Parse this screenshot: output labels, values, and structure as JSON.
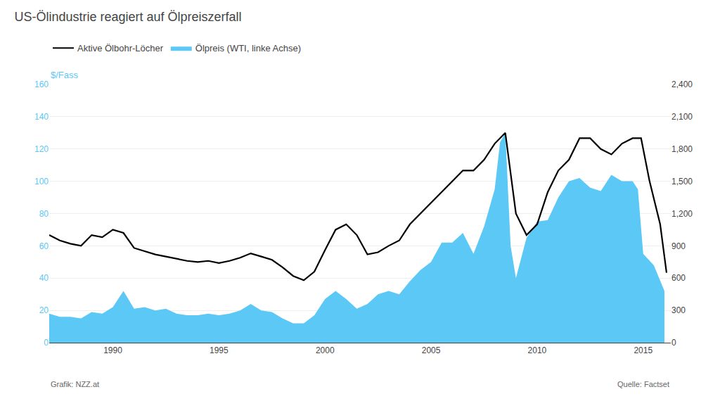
{
  "chart_data": {
    "type": "line",
    "title": "US-Ölindustrie reagiert auf Ölpreiszerfall",
    "ylabel": "$/Fass",
    "annotations": [
      "Grafik: NZZ.at",
      "Quelle: Factset"
    ],
    "xlim": [
      1987.0,
      2016.3
    ],
    "xticks": [
      1990,
      1995,
      2000,
      2005,
      2010,
      2015
    ],
    "ylim": [
      0,
      160
    ],
    "yticks": [
      0,
      20,
      40,
      60,
      80,
      100,
      120,
      140,
      160
    ],
    "y2lim": [
      0,
      2400
    ],
    "y2ticks": [
      0,
      300,
      600,
      900,
      {
        "value": 1200,
        "label": "1,200"
      },
      {
        "value": 1500,
        "label": "1,500"
      },
      {
        "value": 1800,
        "label": "1,800"
      },
      {
        "value": 2100,
        "label": "2,100"
      },
      {
        "value": 2400,
        "label": "2,400"
      }
    ],
    "grid": true,
    "legend": "top left",
    "series": [
      {
        "name": "Aktive Ölbohr-Löcher",
        "type": "line",
        "axis": "y2",
        "color": "#000000",
        "x": [
          1987.0,
          1987.5,
          1988.0,
          1988.5,
          1989.0,
          1989.5,
          1990.0,
          1990.5,
          1991.0,
          1991.5,
          1992.0,
          1992.5,
          1993.0,
          1993.5,
          1994.0,
          1994.5,
          1995.0,
          1995.5,
          1996.0,
          1996.5,
          1997.0,
          1997.5,
          1998.0,
          1998.5,
          1999.0,
          1999.5,
          2000.0,
          2000.5,
          2001.0,
          2001.5,
          2002.0,
          2002.5,
          2003.0,
          2003.5,
          2004.0,
          2004.5,
          2005.0,
          2005.5,
          2006.0,
          2006.5,
          2007.0,
          2007.5,
          2008.0,
          2008.5,
          2009.0,
          2009.5,
          2010.0,
          2010.5,
          2011.0,
          2011.5,
          2012.0,
          2012.5,
          2013.0,
          2013.5,
          2014.0,
          2014.5,
          2014.9,
          2015.3,
          2015.8,
          2016.1
        ],
        "values": [
          1000,
          950,
          920,
          900,
          1000,
          980,
          1050,
          1020,
          880,
          850,
          820,
          800,
          780,
          760,
          750,
          760,
          740,
          760,
          790,
          830,
          800,
          770,
          700,
          620,
          580,
          660,
          860,
          1050,
          1100,
          1000,
          820,
          840,
          900,
          950,
          1100,
          1200,
          1300,
          1400,
          1500,
          1600,
          1600,
          1700,
          1850,
          1950,
          1200,
          1000,
          1100,
          1400,
          1600,
          1700,
          1900,
          1900,
          1800,
          1750,
          1850,
          1900,
          1900,
          1500,
          1100,
          650
        ]
      },
      {
        "name": "Ölpreis (WTI, linke Achse)",
        "type": "area",
        "color": "#5bc8f5",
        "x": [
          1987.0,
          1987.5,
          1988.0,
          1988.5,
          1989.0,
          1989.5,
          1990.0,
          1990.5,
          1991.0,
          1991.5,
          1992.0,
          1992.5,
          1993.0,
          1993.5,
          1994.0,
          1994.5,
          1995.0,
          1995.5,
          1996.0,
          1996.5,
          1997.0,
          1997.5,
          1998.0,
          1998.5,
          1999.0,
          1999.5,
          2000.0,
          2000.5,
          2001.0,
          2001.5,
          2002.0,
          2002.5,
          2003.0,
          2003.5,
          2004.0,
          2004.5,
          2005.0,
          2005.5,
          2006.0,
          2006.5,
          2007.0,
          2007.5,
          2008.0,
          2008.25,
          2008.5,
          2008.75,
          2009.0,
          2009.5,
          2010.0,
          2010.5,
          2011.0,
          2011.5,
          2012.0,
          2012.5,
          2013.0,
          2013.5,
          2014.0,
          2014.5,
          2014.75,
          2015.0,
          2015.5,
          2016.0
        ],
        "values": [
          18,
          16,
          16,
          15,
          19,
          18,
          22,
          32,
          21,
          22,
          20,
          21,
          18,
          17,
          17,
          18,
          17,
          18,
          20,
          24,
          20,
          19,
          15,
          12,
          12,
          17,
          27,
          32,
          27,
          21,
          24,
          30,
          32,
          30,
          38,
          45,
          50,
          62,
          62,
          68,
          55,
          72,
          95,
          124,
          130,
          60,
          40,
          65,
          75,
          76,
          90,
          100,
          102,
          96,
          94,
          104,
          100,
          100,
          95,
          55,
          48,
          32
        ]
      }
    ]
  }
}
